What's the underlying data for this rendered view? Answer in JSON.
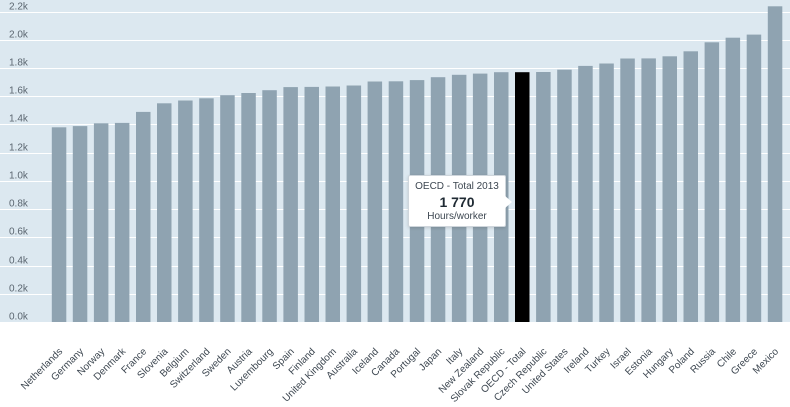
{
  "chart_data": {
    "type": "bar",
    "title": "",
    "xlabel": "",
    "ylabel": "",
    "ylim": [
      0,
      2250
    ],
    "yticks": [
      0,
      200,
      400,
      600,
      800,
      1000,
      1200,
      1400,
      1600,
      1800,
      2000,
      2200
    ],
    "ytick_labels": [
      "0.0k",
      "0.2k",
      "0.4k",
      "0.6k",
      "0.8k",
      "1.0k",
      "1.2k",
      "1.4k",
      "1.6k",
      "1.8k",
      "2.0k",
      "2.2k"
    ],
    "categories": [
      "Netherlands",
      "Germany",
      "Norway",
      "Denmark",
      "France",
      "Slovenia",
      "Belgium",
      "Switzerland",
      "Sweden",
      "Austria",
      "Luxembourg",
      "Spain",
      "Finland",
      "United Kingdom",
      "Australia",
      "Iceland",
      "Canada",
      "Portugal",
      "Japan",
      "Italy",
      "New Zealand",
      "Slovak Republic",
      "OECD - Total",
      "Czech Republic",
      "United States",
      "Ireland",
      "Turkey",
      "Israel",
      "Estonia",
      "Hungary",
      "Poland",
      "Russia",
      "Chile",
      "Greece",
      "Mexico"
    ],
    "values": [
      1380,
      1388,
      1408,
      1411,
      1489,
      1550,
      1570,
      1585,
      1607,
      1623,
      1643,
      1665,
      1666,
      1669,
      1676,
      1704,
      1706,
      1714,
      1735,
      1752,
      1760,
      1770,
      1770,
      1772,
      1788,
      1815,
      1832,
      1867,
      1868,
      1883,
      1918,
      1982,
      2015,
      2037,
      2237
    ],
    "highlight": "OECD - Total",
    "colors": {
      "bar": "#8fa3b1",
      "highlight": "#000000",
      "plot_bg": "#dce8f0",
      "grid": "#ffffff"
    }
  },
  "tooltip": {
    "title": "OECD - Total 2013",
    "value": "1 770",
    "unit": "Hours/worker"
  }
}
